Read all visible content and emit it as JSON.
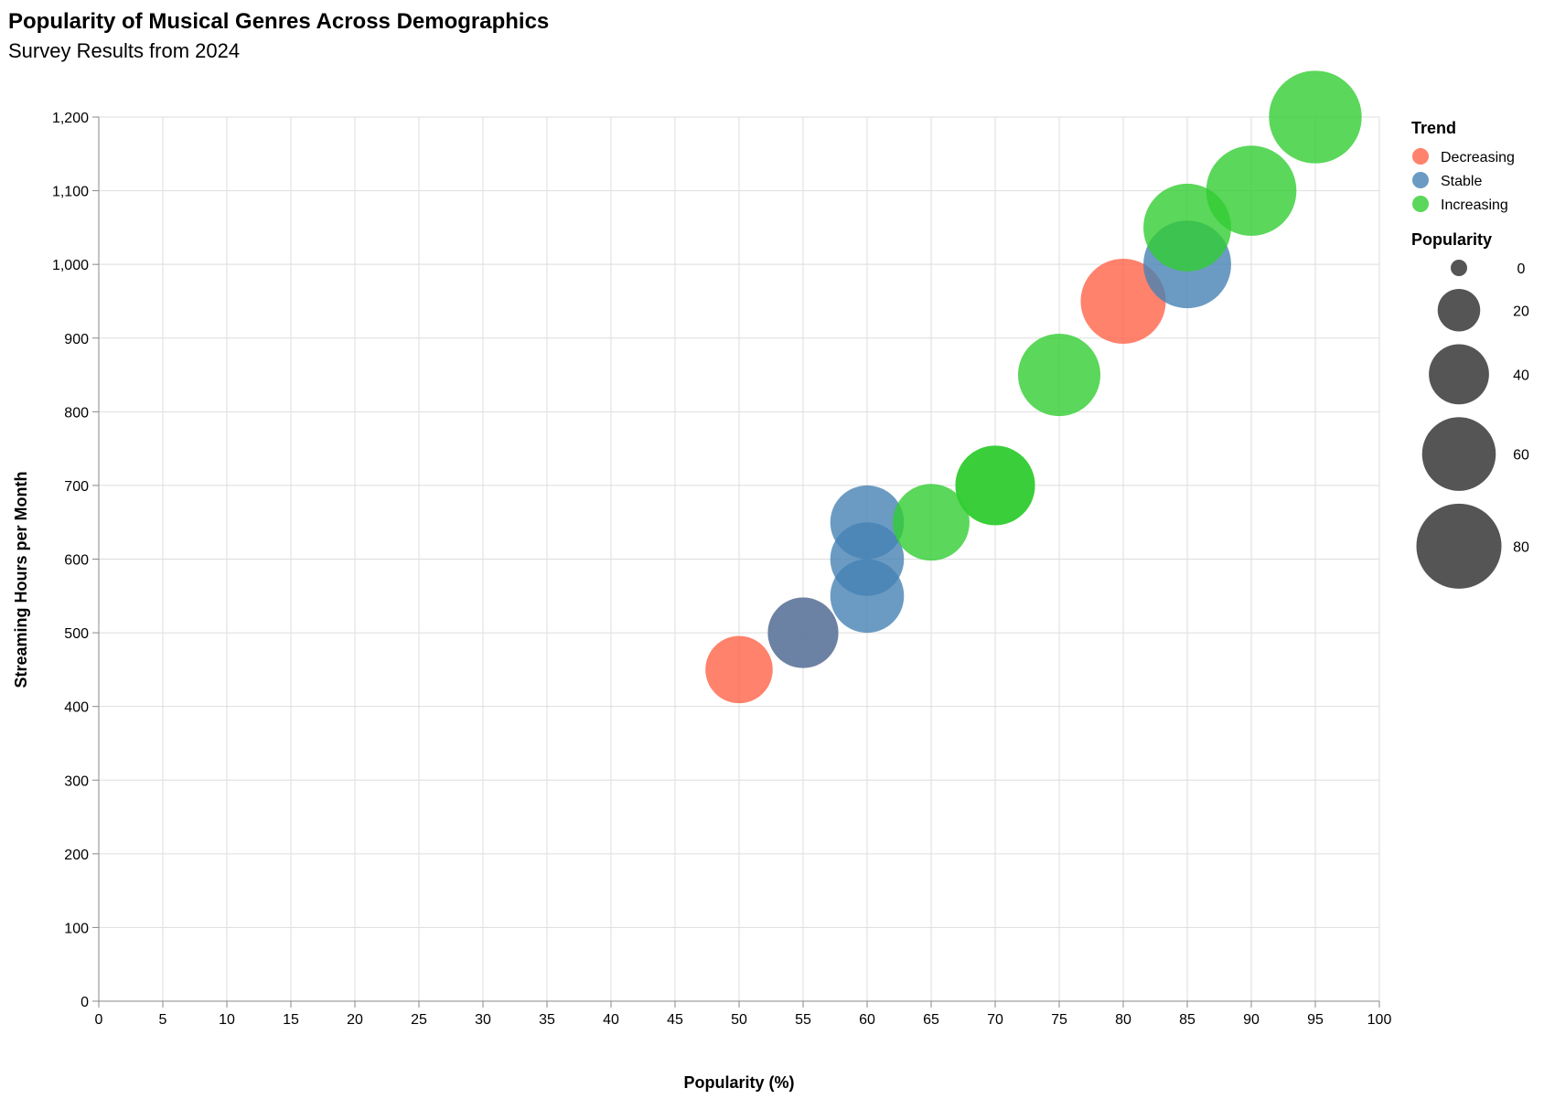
{
  "chart_data": {
    "type": "scatter",
    "title": "Popularity of Musical Genres Across Demographics",
    "subtitle": "Survey Results from 2024",
    "xlabel": "Popularity (%)",
    "ylabel": "Streaming Hours per Month",
    "xlim": [
      0,
      100
    ],
    "ylim": [
      0,
      1200
    ],
    "x_ticks": [
      "0",
      "5",
      "10",
      "15",
      "20",
      "25",
      "30",
      "35",
      "40",
      "45",
      "50",
      "55",
      "60",
      "65",
      "70",
      "75",
      "80",
      "85",
      "90",
      "95",
      "100"
    ],
    "y_ticks": [
      "0",
      "100",
      "200",
      "300",
      "400",
      "500",
      "600",
      "700",
      "800",
      "900",
      "1,000",
      "1,100",
      "1,200"
    ],
    "grid": true,
    "size_encoding": "Popularity",
    "colors": {
      "Decreasing": "#ff6347",
      "Stable": "#4682b4",
      "Increasing": "#32cd32"
    },
    "points": [
      {
        "x": 50,
        "y": 450,
        "trend": "Decreasing"
      },
      {
        "x": 55,
        "y": 500,
        "trend": "Decreasing"
      },
      {
        "x": 55,
        "y": 500,
        "trend": "Stable"
      },
      {
        "x": 60,
        "y": 550,
        "trend": "Stable"
      },
      {
        "x": 60,
        "y": 600,
        "trend": "Stable"
      },
      {
        "x": 60,
        "y": 650,
        "trend": "Stable"
      },
      {
        "x": 65,
        "y": 650,
        "trend": "Increasing"
      },
      {
        "x": 70,
        "y": 700,
        "trend": "Increasing"
      },
      {
        "x": 70,
        "y": 700,
        "trend": "Increasing"
      },
      {
        "x": 75,
        "y": 850,
        "trend": "Increasing"
      },
      {
        "x": 80,
        "y": 950,
        "trend": "Decreasing"
      },
      {
        "x": 85,
        "y": 1000,
        "trend": "Stable"
      },
      {
        "x": 85,
        "y": 1050,
        "trend": "Increasing"
      },
      {
        "x": 90,
        "y": 1100,
        "trend": "Increasing"
      },
      {
        "x": 95,
        "y": 1200,
        "trend": "Increasing"
      }
    ],
    "legend": {
      "placement": "right",
      "color_title": "Trend",
      "color_entries": [
        "Decreasing",
        "Stable",
        "Increasing"
      ],
      "size_title": "Popularity",
      "size_entries": [
        "0",
        "20",
        "40",
        "60",
        "80"
      ],
      "size_values": [
        0,
        20,
        40,
        60,
        80
      ]
    }
  }
}
